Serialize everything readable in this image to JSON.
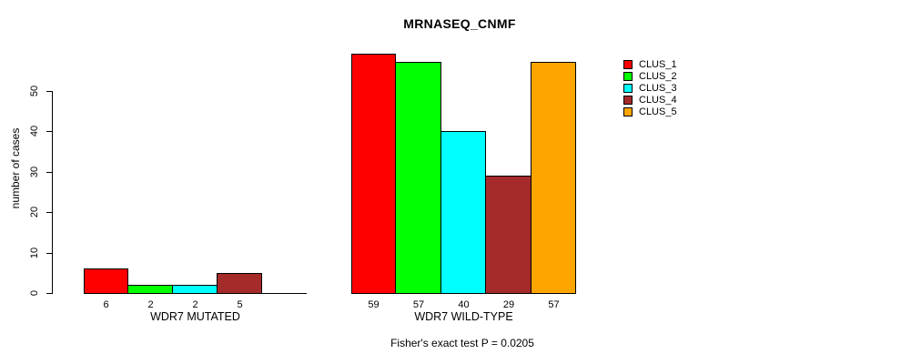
{
  "title": "MRNASEQ_CNMF",
  "chart_data": {
    "type": "bar",
    "title": "MRNASEQ_CNMF",
    "xlabel": "",
    "ylabel": "number of cases",
    "ylim": [
      0,
      50
    ],
    "yticks": [
      0,
      10,
      20,
      30,
      40,
      50
    ],
    "grid": false,
    "legend_position": "right",
    "series": [
      {
        "name": "CLUS_1",
        "color": "#ff0000"
      },
      {
        "name": "CLUS_2",
        "color": "#00ff00"
      },
      {
        "name": "CLUS_3",
        "color": "#00ffff"
      },
      {
        "name": "CLUS_4",
        "color": "#a52a2a"
      },
      {
        "name": "CLUS_5",
        "color": "#ffa500"
      }
    ],
    "groups": [
      {
        "label": "WDR7 MUTATED",
        "values": [
          6,
          2,
          2,
          5,
          0
        ],
        "bar_labels": [
          "6",
          "2",
          "2",
          "5",
          ""
        ]
      },
      {
        "label": "WDR7 WILD-TYPE",
        "values": [
          59,
          57,
          40,
          29,
          57
        ],
        "bar_labels": [
          "59",
          "57",
          "40",
          "29",
          "57"
        ]
      }
    ],
    "footnote": "Fisher's exact test P = 0.0205"
  }
}
